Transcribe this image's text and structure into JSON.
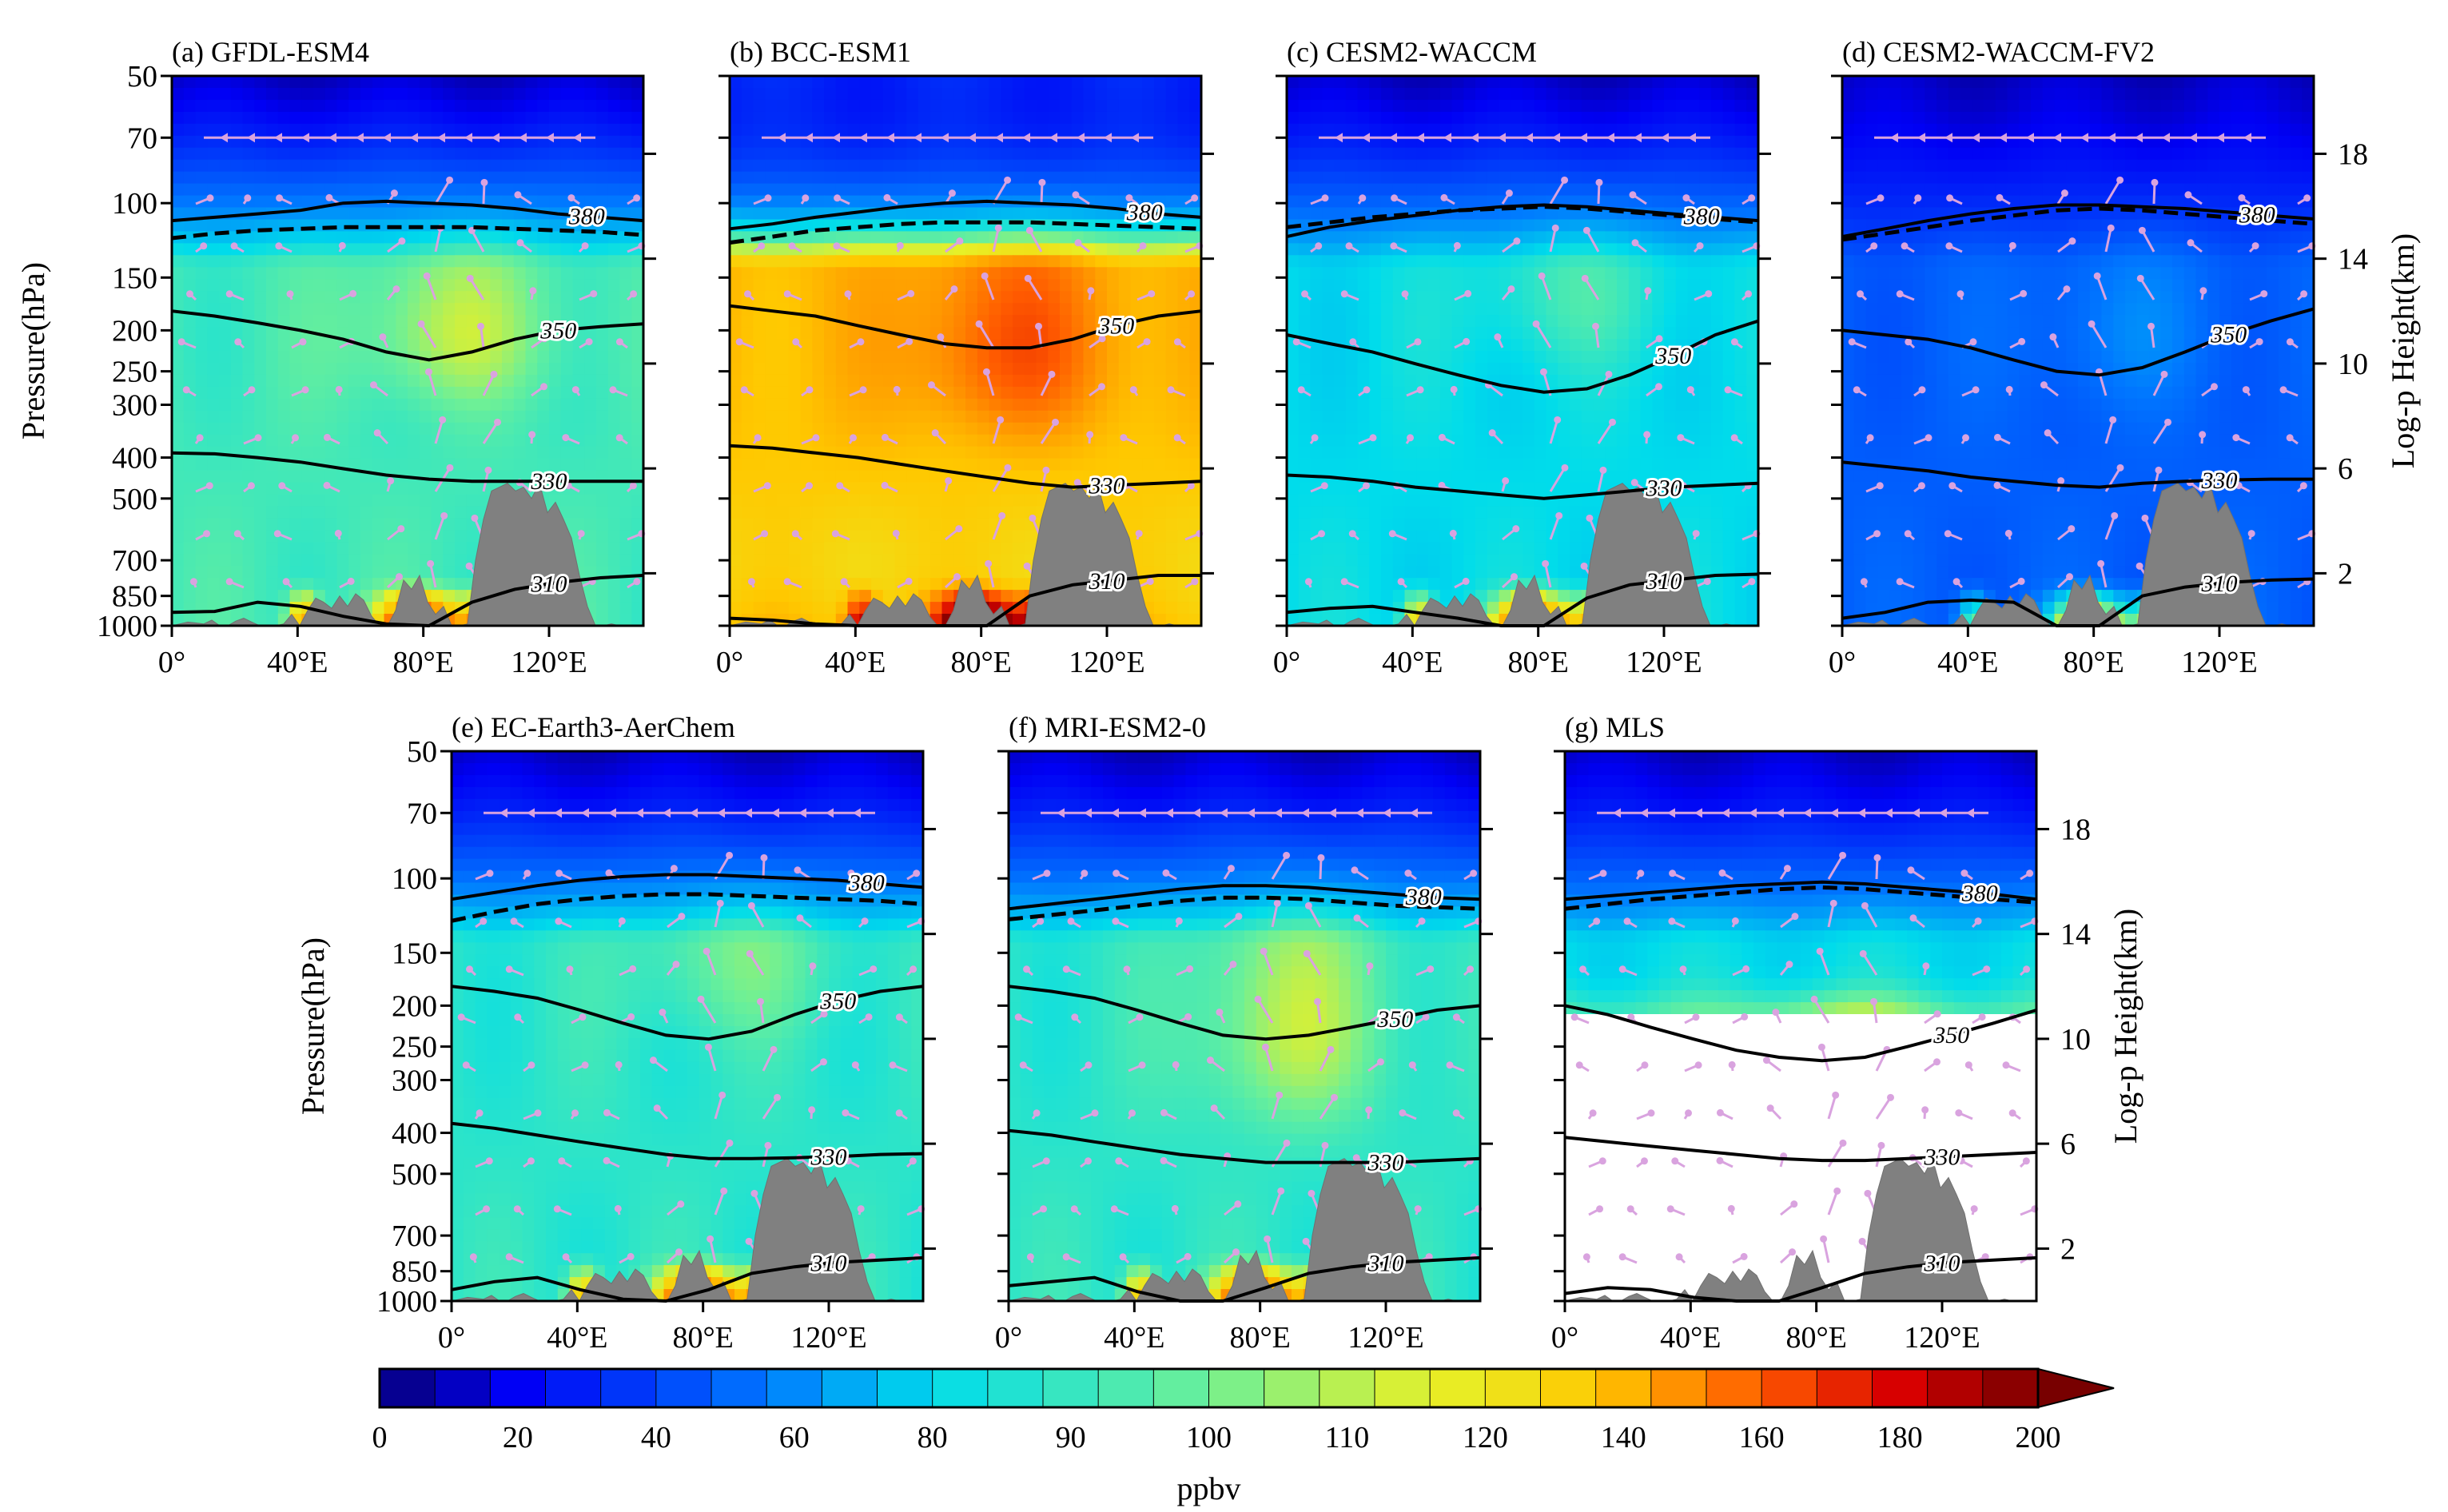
{
  "figure": {
    "panels": [
      {
        "id": "a",
        "title": "(a) GFDL-ESM4",
        "colormode": "green",
        "mask_below_p": null,
        "iso380": [
          110,
          108,
          106,
          104,
          100,
          99,
          100,
          101,
          103,
          106,
          108,
          110
        ],
        "trop": [
          121,
          118,
          116,
          115,
          114,
          114,
          114,
          114,
          115,
          116,
          117,
          119
        ],
        "iso350": [
          180,
          185,
          192,
          200,
          210,
          225,
          235,
          225,
          210,
          200,
          196,
          193
        ],
        "iso330": [
          390,
          392,
          400,
          410,
          425,
          440,
          450,
          455,
          455,
          455,
          455,
          455
        ],
        "iso310": [
          930,
          925,
          880,
          900,
          950,
          990,
          1000,
          880,
          820,
          790,
          770,
          760
        ]
      },
      {
        "id": "b",
        "title": "(b) BCC-ESM1",
        "colormode": "orange",
        "mask_below_p": null,
        "iso380": [
          115,
          112,
          108,
          105,
          102,
          100,
          99,
          100,
          101,
          103,
          106,
          108
        ],
        "trop": [
          124,
          120,
          116,
          114,
          112,
          111,
          111,
          111,
          112,
          113,
          114,
          115
        ],
        "iso350": [
          175,
          180,
          185,
          195,
          205,
          215,
          220,
          220,
          210,
          195,
          185,
          180
        ],
        "iso330": [
          375,
          380,
          390,
          400,
          415,
          430,
          445,
          460,
          470,
          465,
          460,
          455
        ],
        "iso310": [
          960,
          970,
          990,
          1000,
          1000,
          1000,
          1000,
          850,
          800,
          780,
          760,
          760
        ]
      },
      {
        "id": "c",
        "title": "(c) CESM2-WACCM",
        "colormode": "cyan",
        "mask_below_p": null,
        "iso380": [
          120,
          114,
          110,
          107,
          104,
          102,
          101,
          102,
          104,
          106,
          108,
          110
        ],
        "trop": [
          114,
          111,
          108,
          106,
          104,
          103,
          102,
          103,
          105,
          107,
          109,
          111
        ],
        "iso350": [
          205,
          215,
          225,
          240,
          255,
          270,
          280,
          275,
          255,
          230,
          205,
          190
        ],
        "iso330": [
          440,
          445,
          455,
          470,
          480,
          490,
          500,
          490,
          480,
          470,
          465,
          460
        ],
        "iso310": [
          930,
          910,
          900,
          930,
          960,
          1000,
          1000,
          860,
          800,
          780,
          760,
          755
        ]
      },
      {
        "id": "d",
        "title": "(d) CESM2-WACCM-FV2",
        "colormode": "blue",
        "mask_below_p": null,
        "iso380": [
          120,
          115,
          110,
          106,
          103,
          101,
          101,
          102,
          103,
          105,
          107,
          109
        ],
        "trop": [
          122,
          118,
          114,
          110,
          107,
          104,
          103,
          104,
          106,
          108,
          110,
          112
        ],
        "iso350": [
          200,
          205,
          210,
          220,
          235,
          250,
          255,
          245,
          225,
          205,
          190,
          178
        ],
        "iso330": [
          410,
          420,
          430,
          445,
          455,
          465,
          470,
          460,
          455,
          452,
          450,
          450
        ],
        "iso310": [
          960,
          930,
          880,
          870,
          880,
          1000,
          1000,
          850,
          810,
          790,
          780,
          775
        ]
      },
      {
        "id": "e",
        "title": "(e) EC-Earth3-AerChem",
        "colormode": "cyangreen",
        "mask_below_p": null,
        "iso380": [
          112,
          108,
          104,
          101,
          99,
          98,
          98,
          99,
          100,
          101,
          103,
          105
        ],
        "trop": [
          126,
          120,
          115,
          112,
          110,
          109,
          109,
          110,
          111,
          112,
          113,
          115
        ],
        "iso350": [
          180,
          185,
          192,
          205,
          220,
          235,
          240,
          230,
          210,
          195,
          185,
          180
        ],
        "iso330": [
          380,
          390,
          405,
          420,
          435,
          450,
          460,
          460,
          458,
          455,
          450,
          448
        ],
        "iso310": [
          940,
          900,
          880,
          940,
          990,
          1000,
          940,
          860,
          830,
          810,
          800,
          790
        ]
      },
      {
        "id": "f",
        "title": "(f) MRI-ESM2-0",
        "colormode": "green2",
        "mask_below_p": null,
        "iso380": [
          118,
          115,
          112,
          109,
          106,
          104,
          104,
          105,
          107,
          109,
          111,
          112
        ],
        "trop": [
          125,
          122,
          119,
          116,
          113,
          111,
          111,
          112,
          114,
          116,
          117,
          118
        ],
        "iso350": [
          180,
          185,
          192,
          205,
          220,
          235,
          240,
          235,
          225,
          215,
          205,
          200
        ],
        "iso330": [
          395,
          405,
          420,
          435,
          450,
          460,
          470,
          470,
          470,
          470,
          465,
          460
        ],
        "iso310": [
          920,
          900,
          880,
          950,
          1000,
          1000,
          930,
          860,
          830,
          810,
          800,
          790
        ]
      },
      {
        "id": "g",
        "title": "(g) MLS",
        "colormode": "mls",
        "mask_below_p": 215,
        "iso380": [
          112,
          110,
          108,
          106,
          104,
          103,
          102,
          103,
          105,
          107,
          109,
          112
        ],
        "trop": [
          118,
          115,
          112,
          110,
          108,
          106,
          105,
          106,
          108,
          110,
          112,
          114
        ],
        "iso350": [
          200,
          210,
          225,
          240,
          255,
          265,
          270,
          265,
          250,
          235,
          220,
          205
        ],
        "iso330": [
          410,
          420,
          430,
          440,
          450,
          460,
          465,
          465,
          460,
          455,
          450,
          445
        ],
        "iso310": [
          960,
          930,
          940,
          980,
          1000,
          1000,
          930,
          860,
          830,
          810,
          800,
          790
        ]
      }
    ]
  },
  "chart_data": {
    "type": "heatmap",
    "subtype": "zonal-vertical cross section (longitude–pressure) with contours and wind vectors",
    "panels": [
      "(a) GFDL-ESM4",
      "(b) BCC-ESM1",
      "(c) CESM2-WACCM",
      "(d) CESM2-WACCM-FV2",
      "(e) EC-Earth3-AerChem",
      "(f) MRI-ESM2-0",
      "(g) MLS"
    ],
    "x": {
      "label": "",
      "range": [
        0,
        150
      ],
      "ticks": [
        0,
        40,
        80,
        120
      ],
      "tick_labels": [
        "0°",
        "40°E",
        "80°E",
        "120°E"
      ]
    },
    "y_left": {
      "label": "Pressure(hPa)",
      "scale": "log",
      "range": [
        1000,
        50
      ],
      "ticks": [
        50,
        70,
        100,
        150,
        200,
        250,
        300,
        400,
        500,
        700,
        850,
        1000
      ],
      "tick_labels": [
        "50",
        "70",
        "100",
        "150",
        "200",
        "250",
        "300",
        "400",
        "500",
        "700",
        "850",
        "1000"
      ]
    },
    "y_right": {
      "label": "Log-p Height(km)",
      "ticks": [
        2,
        6,
        10,
        14,
        18
      ],
      "tick_labels": [
        "2",
        "6",
        "10",
        "14",
        "18"
      ]
    },
    "contour_labels": [
      "380",
      "350",
      "330",
      "310"
    ],
    "colorbar": {
      "label": "ppbv",
      "min": 0,
      "max": 200,
      "extend": "max",
      "tick_values": [
        0,
        20,
        40,
        60,
        80,
        90,
        100,
        110,
        120,
        140,
        160,
        180,
        200
      ],
      "tick_labels": [
        "0",
        "20",
        "40",
        "60",
        "80",
        "90",
        "100",
        "110",
        "120",
        "140",
        "160",
        "180",
        "200"
      ],
      "segments": 30
    },
    "topography_profile": [
      1000,
      990,
      980,
      985,
      990,
      970,
      1000,
      1000,
      975,
      960,
      980,
      1000,
      1000,
      1000,
      990,
      940,
      1000,
      920,
      860,
      880,
      910,
      850,
      900,
      840,
      870,
      950,
      1000,
      1000,
      920,
      780,
      820,
      760,
      880,
      940,
      900,
      1000,
      1000,
      990,
      700,
      560,
      480,
      470,
      460,
      480,
      470,
      500,
      460,
      540,
      510,
      560,
      620,
      760,
      900,
      1000,
      1000,
      990,
      1000,
      1000,
      1000,
      1000
    ]
  }
}
